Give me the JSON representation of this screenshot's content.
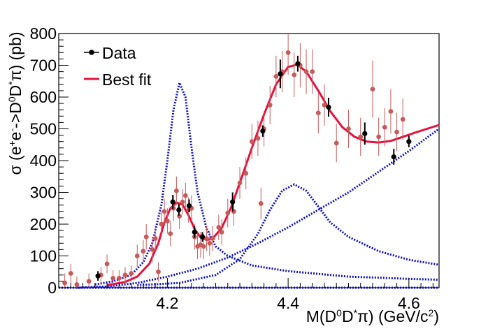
{
  "chart_data": {
    "type": "scatter",
    "title": "",
    "xlabel_parts": [
      "M(D",
      "0",
      "D",
      "*",
      "π) (GeV/c",
      "2",
      ")"
    ],
    "ylabel_parts": [
      "σ (e",
      "+",
      "e",
      "-",
      "->D",
      "0",
      "D",
      "*",
      "π) (pb)"
    ],
    "xlim": [
      4.02,
      4.65
    ],
    "ylim": [
      0,
      800
    ],
    "xticks": [
      {
        "v": 4.2,
        "label": "4.2"
      },
      {
        "v": 4.4,
        "label": "4.4"
      },
      {
        "v": 4.6,
        "label": "4.6"
      }
    ],
    "yticks": [
      {
        "v": 0,
        "label": "0"
      },
      {
        "v": 100,
        "label": "100"
      },
      {
        "v": 200,
        "label": "200"
      },
      {
        "v": 300,
        "label": "300"
      },
      {
        "v": 400,
        "label": "400"
      },
      {
        "v": 500,
        "label": "500"
      },
      {
        "v": 600,
        "label": "600"
      },
      {
        "v": 700,
        "label": "700"
      },
      {
        "v": 800,
        "label": "800"
      }
    ],
    "grid": false,
    "legend": {
      "placement": "top-left",
      "entries": [
        {
          "label": "Data",
          "marker": "point",
          "color": "#000000"
        },
        {
          "label": "Best fit",
          "marker": "line",
          "color": "#e8103c"
        }
      ]
    },
    "colors": {
      "data": "#000000",
      "scan": "#c85a5a",
      "fit": "#e8103c",
      "components": "#1010cc"
    },
    "series": [
      {
        "role": "data",
        "points": [
          {
            "x": 4.085,
            "y": 37,
            "e": 15
          },
          {
            "x": 4.209,
            "y": 270,
            "e": 22
          },
          {
            "x": 4.219,
            "y": 245,
            "e": 18
          },
          {
            "x": 4.236,
            "y": 258,
            "e": 20
          },
          {
            "x": 4.245,
            "y": 175,
            "e": 18
          },
          {
            "x": 4.258,
            "y": 160,
            "e": 15
          },
          {
            "x": 4.308,
            "y": 270,
            "e": 30
          },
          {
            "x": 4.358,
            "y": 493,
            "e": 18
          },
          {
            "x": 4.387,
            "y": 673,
            "e": 45
          },
          {
            "x": 4.416,
            "y": 705,
            "e": 25
          },
          {
            "x": 4.467,
            "y": 568,
            "e": 30
          },
          {
            "x": 4.527,
            "y": 485,
            "e": 35
          },
          {
            "x": 4.575,
            "y": 412,
            "e": 25
          },
          {
            "x": 4.6,
            "y": 460,
            "e": 18
          }
        ]
      },
      {
        "role": "scan",
        "points": [
          {
            "x": 4.03,
            "y": 15,
            "e": 30
          },
          {
            "x": 4.04,
            "y": 45,
            "e": 30
          },
          {
            "x": 4.05,
            "y": 10,
            "e": 25
          },
          {
            "x": 4.07,
            "y": 20,
            "e": 25
          },
          {
            "x": 4.09,
            "y": 40,
            "e": 25
          },
          {
            "x": 4.1,
            "y": 75,
            "e": 30
          },
          {
            "x": 4.11,
            "y": 30,
            "e": 25
          },
          {
            "x": 4.12,
            "y": 30,
            "e": 25
          },
          {
            "x": 4.13,
            "y": 40,
            "e": 25
          },
          {
            "x": 4.14,
            "y": 45,
            "e": 25
          },
          {
            "x": 4.15,
            "y": 100,
            "e": 35
          },
          {
            "x": 4.16,
            "y": 115,
            "e": 35
          },
          {
            "x": 4.165,
            "y": 160,
            "e": 40
          },
          {
            "x": 4.175,
            "y": 120,
            "e": 40
          },
          {
            "x": 4.18,
            "y": 155,
            "e": 40
          },
          {
            "x": 4.185,
            "y": 50,
            "e": 30
          },
          {
            "x": 4.19,
            "y": 200,
            "e": 40
          },
          {
            "x": 4.195,
            "y": 240,
            "e": 40
          },
          {
            "x": 4.2,
            "y": 210,
            "e": 40
          },
          {
            "x": 4.205,
            "y": 170,
            "e": 40
          },
          {
            "x": 4.21,
            "y": 250,
            "e": 40
          },
          {
            "x": 4.215,
            "y": 305,
            "e": 45
          },
          {
            "x": 4.22,
            "y": 225,
            "e": 40
          },
          {
            "x": 4.225,
            "y": 270,
            "e": 40
          },
          {
            "x": 4.23,
            "y": 290,
            "e": 40
          },
          {
            "x": 4.235,
            "y": 245,
            "e": 40
          },
          {
            "x": 4.24,
            "y": 250,
            "e": 40
          },
          {
            "x": 4.245,
            "y": 160,
            "e": 40
          },
          {
            "x": 4.25,
            "y": 130,
            "e": 40
          },
          {
            "x": 4.255,
            "y": 135,
            "e": 40
          },
          {
            "x": 4.26,
            "y": 130,
            "e": 40
          },
          {
            "x": 4.265,
            "y": 155,
            "e": 40
          },
          {
            "x": 4.27,
            "y": 140,
            "e": 40
          },
          {
            "x": 4.275,
            "y": 155,
            "e": 40
          },
          {
            "x": 4.285,
            "y": 190,
            "e": 40
          },
          {
            "x": 4.29,
            "y": 175,
            "e": 40
          },
          {
            "x": 4.3,
            "y": 235,
            "e": 45
          },
          {
            "x": 4.31,
            "y": 240,
            "e": 45
          },
          {
            "x": 4.32,
            "y": 330,
            "e": 50
          },
          {
            "x": 4.33,
            "y": 360,
            "e": 50
          },
          {
            "x": 4.34,
            "y": 460,
            "e": 55
          },
          {
            "x": 4.35,
            "y": 470,
            "e": 55
          },
          {
            "x": 4.355,
            "y": 265,
            "e": 50
          },
          {
            "x": 4.36,
            "y": 500,
            "e": 55
          },
          {
            "x": 4.37,
            "y": 575,
            "e": 60
          },
          {
            "x": 4.38,
            "y": 665,
            "e": 65
          },
          {
            "x": 4.39,
            "y": 680,
            "e": 65
          },
          {
            "x": 4.4,
            "y": 740,
            "e": 70
          },
          {
            "x": 4.41,
            "y": 670,
            "e": 70
          },
          {
            "x": 4.42,
            "y": 700,
            "e": 70
          },
          {
            "x": 4.43,
            "y": 680,
            "e": 70
          },
          {
            "x": 4.44,
            "y": 680,
            "e": 70
          },
          {
            "x": 4.45,
            "y": 550,
            "e": 65
          },
          {
            "x": 4.46,
            "y": 575,
            "e": 65
          },
          {
            "x": 4.48,
            "y": 455,
            "e": 60
          },
          {
            "x": 4.5,
            "y": 500,
            "e": 60
          },
          {
            "x": 4.52,
            "y": 475,
            "e": 60
          },
          {
            "x": 4.54,
            "y": 625,
            "e": 90
          },
          {
            "x": 4.55,
            "y": 475,
            "e": 60
          },
          {
            "x": 4.56,
            "y": 505,
            "e": 60
          },
          {
            "x": 4.57,
            "y": 555,
            "e": 70
          },
          {
            "x": 4.58,
            "y": 490,
            "e": 60
          },
          {
            "x": 4.59,
            "y": 530,
            "e": 65
          }
        ]
      },
      {
        "role": "fit",
        "points": [
          {
            "x": 4.1,
            "y": 8
          },
          {
            "x": 4.13,
            "y": 18
          },
          {
            "x": 4.15,
            "y": 35
          },
          {
            "x": 4.17,
            "y": 75
          },
          {
            "x": 4.185,
            "y": 140
          },
          {
            "x": 4.195,
            "y": 205
          },
          {
            "x": 4.205,
            "y": 250
          },
          {
            "x": 4.215,
            "y": 268
          },
          {
            "x": 4.225,
            "y": 262
          },
          {
            "x": 4.235,
            "y": 228
          },
          {
            "x": 4.245,
            "y": 185
          },
          {
            "x": 4.255,
            "y": 158
          },
          {
            "x": 4.265,
            "y": 150
          },
          {
            "x": 4.275,
            "y": 155
          },
          {
            "x": 4.29,
            "y": 188
          },
          {
            "x": 4.305,
            "y": 250
          },
          {
            "x": 4.32,
            "y": 330
          },
          {
            "x": 4.34,
            "y": 440
          },
          {
            "x": 4.36,
            "y": 545
          },
          {
            "x": 4.38,
            "y": 640
          },
          {
            "x": 4.4,
            "y": 695
          },
          {
            "x": 4.415,
            "y": 702
          },
          {
            "x": 4.43,
            "y": 680
          },
          {
            "x": 4.45,
            "y": 620
          },
          {
            "x": 4.47,
            "y": 555
          },
          {
            "x": 4.49,
            "y": 505
          },
          {
            "x": 4.51,
            "y": 475
          },
          {
            "x": 4.53,
            "y": 460
          },
          {
            "x": 4.55,
            "y": 457
          },
          {
            "x": 4.57,
            "y": 462
          },
          {
            "x": 4.59,
            "y": 475
          },
          {
            "x": 4.61,
            "y": 488
          },
          {
            "x": 4.63,
            "y": 500
          },
          {
            "x": 4.65,
            "y": 512
          }
        ]
      },
      {
        "role": "component",
        "points": [
          {
            "x": 4.08,
            "y": 10
          },
          {
            "x": 4.11,
            "y": 20
          },
          {
            "x": 4.14,
            "y": 40
          },
          {
            "x": 4.16,
            "y": 80
          },
          {
            "x": 4.175,
            "y": 140
          },
          {
            "x": 4.19,
            "y": 260
          },
          {
            "x": 4.2,
            "y": 400
          },
          {
            "x": 4.21,
            "y": 560
          },
          {
            "x": 4.22,
            "y": 645
          },
          {
            "x": 4.23,
            "y": 600
          },
          {
            "x": 4.24,
            "y": 440
          },
          {
            "x": 4.25,
            "y": 300
          },
          {
            "x": 4.265,
            "y": 185
          },
          {
            "x": 4.28,
            "y": 130
          },
          {
            "x": 4.3,
            "y": 100
          },
          {
            "x": 4.34,
            "y": 70
          },
          {
            "x": 4.4,
            "y": 52
          },
          {
            "x": 4.5,
            "y": 35
          },
          {
            "x": 4.6,
            "y": 28
          },
          {
            "x": 4.65,
            "y": 25
          }
        ]
      },
      {
        "role": "component",
        "points": [
          {
            "x": 4.15,
            "y": 8
          },
          {
            "x": 4.22,
            "y": 15
          },
          {
            "x": 4.28,
            "y": 40
          },
          {
            "x": 4.32,
            "y": 90
          },
          {
            "x": 4.35,
            "y": 170
          },
          {
            "x": 4.37,
            "y": 245
          },
          {
            "x": 4.39,
            "y": 305
          },
          {
            "x": 4.41,
            "y": 325
          },
          {
            "x": 4.43,
            "y": 305
          },
          {
            "x": 4.45,
            "y": 255
          },
          {
            "x": 4.47,
            "y": 205
          },
          {
            "x": 4.5,
            "y": 160
          },
          {
            "x": 4.55,
            "y": 115
          },
          {
            "x": 4.6,
            "y": 88
          },
          {
            "x": 4.65,
            "y": 72
          }
        ]
      },
      {
        "role": "component",
        "points": [
          {
            "x": 4.05,
            "y": 0
          },
          {
            "x": 4.1,
            "y": 4
          },
          {
            "x": 4.15,
            "y": 15
          },
          {
            "x": 4.2,
            "y": 35
          },
          {
            "x": 4.25,
            "y": 60
          },
          {
            "x": 4.3,
            "y": 95
          },
          {
            "x": 4.35,
            "y": 140
          },
          {
            "x": 4.4,
            "y": 190
          },
          {
            "x": 4.45,
            "y": 245
          },
          {
            "x": 4.5,
            "y": 300
          },
          {
            "x": 4.55,
            "y": 365
          },
          {
            "x": 4.6,
            "y": 430
          },
          {
            "x": 4.65,
            "y": 500
          }
        ]
      },
      {
        "role": "component",
        "points": [
          {
            "x": 4.02,
            "y": 0
          },
          {
            "x": 4.65,
            "y": 0
          }
        ]
      }
    ]
  }
}
